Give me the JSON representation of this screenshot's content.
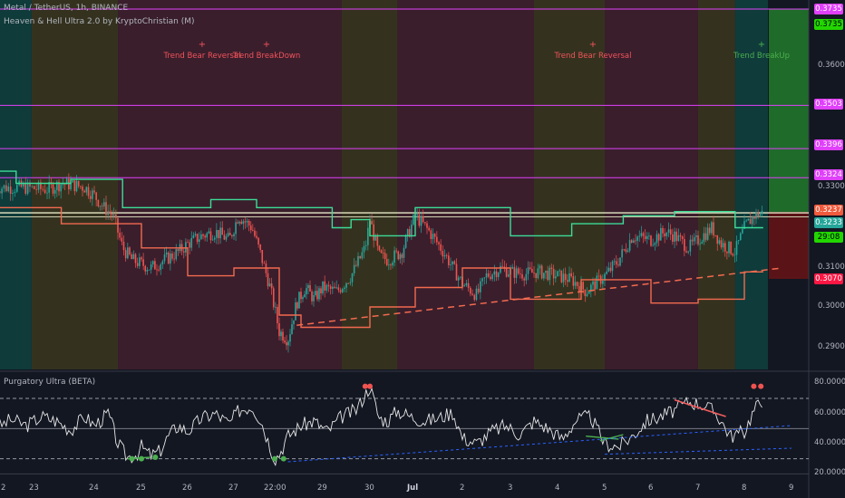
{
  "header": {
    "symbol_line": "Metal / TetherUS, 1h, BINANCE",
    "indicator_line": "Heaven & Hell Ultra 2.0 by KryptoChristian (M)"
  },
  "sub_pane": {
    "title": "Purgatory Ultra (BETA)",
    "y_labels": [
      "80.0000",
      "60.0000",
      "40.0000",
      "20.0000"
    ]
  },
  "annotations": [
    {
      "text": "Trend Bear Reversal",
      "color": "#f2535a"
    },
    {
      "text": "Trend BreakDown",
      "color": "#f2535a"
    },
    {
      "text": "Trend Bear Reversal",
      "color": "#f2535a"
    },
    {
      "text": "Trend BreakUp",
      "color": "#4caf50"
    }
  ],
  "price_axis": {
    "tick_labels": [
      "0.3600",
      "0.3300",
      "0.3100",
      "0.3000",
      "0.2900"
    ]
  },
  "price_tags": [
    {
      "text": "0.3735",
      "bg": "#e040fb",
      "fg": "#ffffff"
    },
    {
      "text": "0.3735",
      "bg": "#22d600",
      "fg": "#000000"
    },
    {
      "text": "0.3503",
      "bg": "#e040fb",
      "fg": "#ffffff"
    },
    {
      "text": "0.3396",
      "bg": "#e040fb",
      "fg": "#ffffff"
    },
    {
      "text": "0.3324",
      "bg": "#e040fb",
      "fg": "#ffffff"
    },
    {
      "text": "0.3237",
      "bg": "#f05a3c",
      "fg": "#ffffff"
    },
    {
      "text": "0.3233",
      "bg": "#26a69a",
      "fg": "#ffffff"
    },
    {
      "text": "29:08",
      "bg": "#22d600",
      "fg": "#000000"
    },
    {
      "text": "0.3070",
      "bg": "#ff1744",
      "fg": "#ffffff"
    }
  ],
  "time_axis": {
    "labels": [
      "2",
      "23",
      "24",
      "25",
      "26",
      "27",
      "22:00",
      "29",
      "30",
      "Jul",
      "2",
      "3",
      "4",
      "5",
      "6",
      "7",
      "8",
      "9"
    ]
  },
  "chart_data": {
    "type": "line",
    "title": "Metal / TetherUS, 1h, BINANCE",
    "y_axis_ticks": [
      0.36,
      0.33,
      0.31,
      0.3,
      0.29
    ],
    "horizontal_levels": [
      0.3735,
      0.3503,
      0.3396,
      0.3324
    ],
    "last_price": 0.3237,
    "price_tags": [
      0.3735,
      0.3735,
      0.3503,
      0.3396,
      0.3324,
      0.3237,
      0.3233,
      0.307
    ],
    "price_series": {
      "name": "Metal / TetherUS",
      "x_day": [
        22.0,
        22.5,
        23.0,
        23.3,
        23.6,
        23.8,
        24.0,
        24.2,
        24.4,
        24.6,
        24.8,
        25.0,
        25.2,
        25.5,
        25.8,
        26.0,
        26.3,
        26.6,
        26.9,
        27.1,
        27.4,
        27.6,
        27.8,
        28.0,
        28.2,
        28.4,
        28.6,
        28.8,
        29.0,
        29.3,
        29.6,
        29.9,
        30.0,
        30.2,
        30.4,
        30.7,
        31.0,
        31.3,
        31.6,
        32.0,
        32.3,
        32.5,
        32.8,
        33.0,
        33.3,
        33.6,
        34.0,
        34.3,
        34.6,
        35.0,
        35.3,
        35.6,
        36.0,
        36.3,
        36.5,
        36.8,
        37.0,
        37.3,
        37.5,
        37.8,
        38.0,
        38.2,
        38.4
      ],
      "price": [
        0.33,
        0.33,
        0.3295,
        0.331,
        0.3305,
        0.33,
        0.328,
        0.325,
        0.323,
        0.315,
        0.312,
        0.311,
        0.31,
        0.312,
        0.314,
        0.316,
        0.318,
        0.319,
        0.317,
        0.323,
        0.32,
        0.313,
        0.305,
        0.294,
        0.292,
        0.301,
        0.305,
        0.302,
        0.305,
        0.304,
        0.308,
        0.315,
        0.322,
        0.313,
        0.312,
        0.314,
        0.323,
        0.319,
        0.314,
        0.306,
        0.303,
        0.308,
        0.31,
        0.309,
        0.3085,
        0.309,
        0.308,
        0.307,
        0.304,
        0.308,
        0.312,
        0.318,
        0.317,
        0.319,
        0.318,
        0.315,
        0.317,
        0.32,
        0.316,
        0.314,
        0.32,
        0.323,
        0.3237
      ]
    },
    "supertrend_upper": {
      "name": "resistance",
      "x_day": [
        22.0,
        22.4,
        22.4,
        23.5,
        23.5,
        24.6,
        24.6,
        26.5,
        26.5,
        27.5,
        27.5,
        29.2,
        29.2,
        29.6,
        29.6,
        30.0,
        30.0,
        31.0,
        31.0,
        33.0,
        33.0,
        34.3,
        34.3,
        35.4,
        35.4,
        36.5,
        36.5,
        37.8,
        37.8,
        38.4
      ],
      "price": [
        0.334,
        0.334,
        0.331,
        0.331,
        0.332,
        0.332,
        0.325,
        0.325,
        0.327,
        0.327,
        0.325,
        0.325,
        0.32,
        0.32,
        0.322,
        0.322,
        0.318,
        0.318,
        0.325,
        0.325,
        0.318,
        0.318,
        0.321,
        0.321,
        0.323,
        0.323,
        0.324,
        0.324,
        0.32,
        0.32
      ]
    },
    "supertrend_lower": {
      "name": "support",
      "x_day": [
        22.0,
        23.3,
        23.3,
        25.0,
        25.0,
        26.0,
        26.0,
        27.0,
        27.0,
        28.0,
        28.0,
        28.5,
        28.5,
        30.0,
        30.0,
        31.0,
        31.0,
        32.0,
        32.0,
        33.0,
        33.0,
        34.5,
        34.5,
        36.0,
        36.0,
        37.0,
        37.0,
        38.0,
        38.0,
        38.4
      ],
      "price": [
        0.325,
        0.325,
        0.321,
        0.321,
        0.315,
        0.315,
        0.308,
        0.308,
        0.31,
        0.31,
        0.298,
        0.298,
        0.295,
        0.295,
        0.3,
        0.3,
        0.305,
        0.305,
        0.31,
        0.31,
        0.302,
        0.302,
        0.307,
        0.307,
        0.301,
        0.301,
        0.302,
        0.302,
        0.309,
        0.309
      ]
    },
    "trendline_dashed": {
      "x_day": [
        28.4,
        38.8
      ],
      "price": [
        0.2955,
        0.31
      ]
    },
    "background_zones": [
      {
        "from_day": 22.0,
        "to_day": 22.7,
        "kind": "bull"
      },
      {
        "from_day": 22.7,
        "to_day": 24.5,
        "kind": "neutral"
      },
      {
        "from_day": 24.5,
        "to_day": 29.4,
        "kind": "bear"
      },
      {
        "from_day": 29.4,
        "to_day": 30.6,
        "kind": "neutral"
      },
      {
        "from_day": 30.6,
        "to_day": 33.5,
        "kind": "bear"
      },
      {
        "from_day": 33.5,
        "to_day": 35.0,
        "kind": "neutral"
      },
      {
        "from_day": 35.0,
        "to_day": 37.0,
        "kind": "bear"
      },
      {
        "from_day": 37.0,
        "to_day": 37.8,
        "kind": "neutral"
      },
      {
        "from_day": 37.8,
        "to_day": 38.5,
        "kind": "bull"
      }
    ],
    "oscillator": {
      "name": "Purgatory Ultra (BETA)",
      "levels": [
        70,
        50,
        30
      ],
      "x_day": [
        22.0,
        22.3,
        22.6,
        22.9,
        23.2,
        23.5,
        23.8,
        24.0,
        24.3,
        24.5,
        24.7,
        24.9,
        25.0,
        25.2,
        25.4,
        25.6,
        25.8,
        26.0,
        26.3,
        26.6,
        26.9,
        27.1,
        27.4,
        27.6,
        27.8,
        27.9,
        28.0,
        28.2,
        28.5,
        28.8,
        29.1,
        29.4,
        29.7,
        30.0,
        30.2,
        30.4,
        30.6,
        30.9,
        31.2,
        31.5,
        31.8,
        32.0,
        32.3,
        32.6,
        32.9,
        33.2,
        33.5,
        33.8,
        34.1,
        34.4,
        34.7,
        35.0,
        35.3,
        35.6,
        35.9,
        36.2,
        36.5,
        36.8,
        37.1,
        37.4,
        37.7,
        38.0,
        38.2,
        38.4
      ],
      "values": [
        50,
        56,
        52,
        58,
        55,
        49,
        58,
        52,
        60,
        40,
        31,
        33,
        38,
        32,
        35,
        46,
        52,
        48,
        57,
        60,
        53,
        62,
        65,
        55,
        38,
        30,
        33,
        45,
        52,
        55,
        48,
        58,
        62,
        78,
        57,
        55,
        62,
        58,
        55,
        57,
        61,
        44,
        40,
        48,
        52,
        46,
        55,
        50,
        43,
        56,
        58,
        40,
        38,
        45,
        55,
        58,
        62,
        68,
        66,
        60,
        45,
        48,
        62,
        70
      ]
    }
  }
}
